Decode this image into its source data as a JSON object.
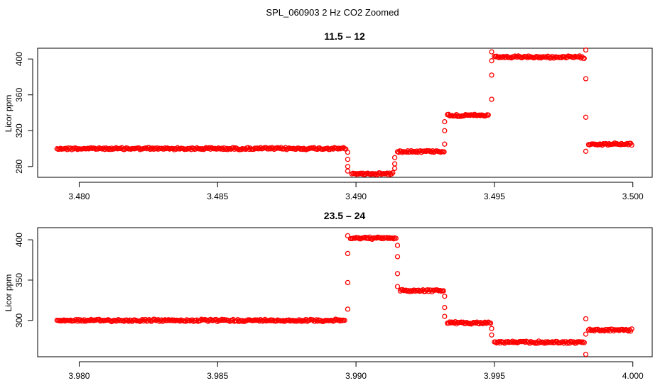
{
  "figure_title": "SPL_060903  2 Hz CO2 Zoomed",
  "colors": {
    "points": "#ff0000",
    "axes": "#000000",
    "background": "#ffffff"
  },
  "chart_data": [
    {
      "type": "scatter",
      "title": "11.5 – 12",
      "xlabel": "",
      "ylabel": "Licor ppm",
      "xlim": [
        3.4785,
        3.5007
      ],
      "ylim": [
        268,
        412
      ],
      "x_ticks": [
        3.48,
        3.485,
        3.49,
        3.495,
        3.5
      ],
      "x_tick_labels": [
        "3.480",
        "3.485",
        "3.490",
        "3.495",
        "3.500"
      ],
      "y_ticks": [
        280,
        320,
        360,
        400
      ],
      "y_tick_labels": [
        "280",
        "320",
        "360",
        "400"
      ],
      "grid": false,
      "marker": "open circle",
      "segments": [
        {
          "x_start": 3.4792,
          "x_end": 3.48965,
          "level": 300
        },
        {
          "x_start": 3.48985,
          "x_end": 3.49135,
          "level": 272
        },
        {
          "x_start": 3.4915,
          "x_end": 3.4932,
          "level": 297
        },
        {
          "x_start": 3.4933,
          "x_end": 3.4948,
          "level": 337
        },
        {
          "x_start": 3.495,
          "x_end": 3.49825,
          "level": 402
        },
        {
          "x_start": 3.4984,
          "x_end": 3.5,
          "level": 305
        }
      ],
      "transitions": [
        {
          "x": 3.4897,
          "values": [
            296,
            288,
            280,
            275
          ]
        },
        {
          "x": 3.4914,
          "values": [
            278,
            283,
            290
          ]
        },
        {
          "x": 3.4932,
          "values": [
            305,
            320,
            330
          ]
        },
        {
          "x": 3.4949,
          "values": [
            355,
            382,
            398,
            408
          ]
        },
        {
          "x": 3.4983,
          "values": [
            410,
            378,
            335,
            297
          ]
        }
      ]
    },
    {
      "type": "scatter",
      "title": "23.5 – 24",
      "xlabel": "",
      "ylabel": "Licor ppm",
      "xlim": [
        3.9785,
        4.0007
      ],
      "ylim": [
        255,
        415
      ],
      "x_ticks": [
        3.98,
        3.985,
        3.99,
        3.995,
        4.0
      ],
      "x_tick_labels": [
        "3.980",
        "3.985",
        "3.990",
        "3.995",
        "4.000"
      ],
      "y_ticks": [
        300,
        350,
        400
      ],
      "y_tick_labels": [
        "300",
        "350",
        "400"
      ],
      "grid": false,
      "marker": "open circle",
      "segments": [
        {
          "x_start": 3.9792,
          "x_end": 3.9896,
          "level": 300
        },
        {
          "x_start": 3.9898,
          "x_end": 3.99145,
          "level": 402
        },
        {
          "x_start": 3.9916,
          "x_end": 3.9932,
          "level": 337
        },
        {
          "x_start": 3.9933,
          "x_end": 3.9949,
          "level": 297
        },
        {
          "x_start": 3.995,
          "x_end": 3.99825,
          "level": 273
        },
        {
          "x_start": 3.9984,
          "x_end": 4.0,
          "level": 288
        }
      ],
      "transitions": [
        {
          "x": 3.9897,
          "values": [
            314,
            347,
            383,
            405
          ]
        },
        {
          "x": 3.9915,
          "values": [
            393,
            379,
            358,
            342
          ]
        },
        {
          "x": 3.9932,
          "values": [
            330,
            316,
            305
          ]
        },
        {
          "x": 3.9949,
          "values": [
            290,
            282
          ]
        },
        {
          "x": 3.9983,
          "values": [
            258,
            302,
            283
          ]
        }
      ]
    }
  ]
}
